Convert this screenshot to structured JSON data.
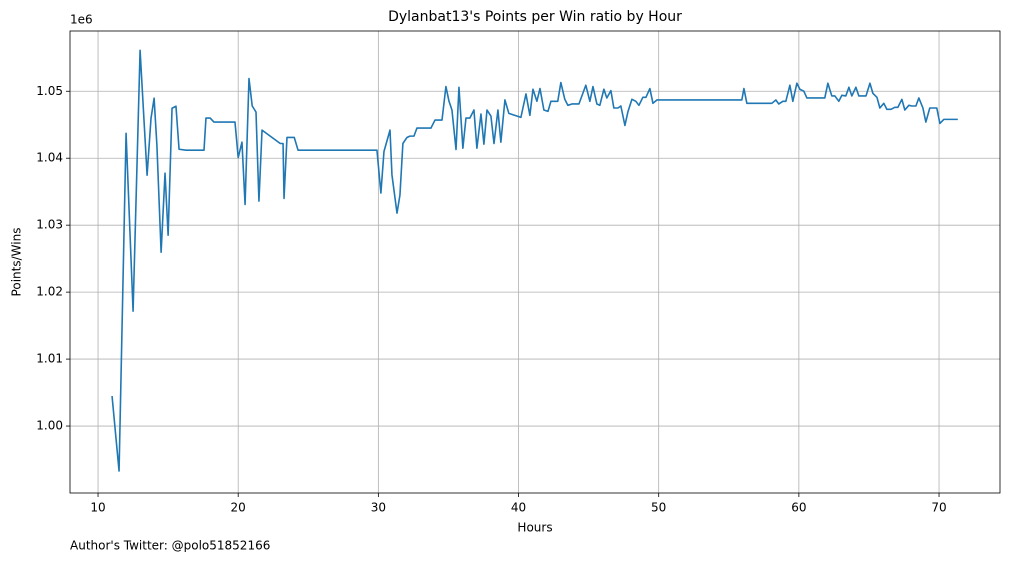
{
  "chart_data": {
    "type": "line",
    "title": "Dylanbat13's Points per Win ratio by Hour",
    "x_label": "Hours",
    "y_label": "Points/Wins",
    "y_offset_label": "1e6",
    "annotation": "Author's Twitter: @polo51852166",
    "grid": true,
    "color": "#1f77b4",
    "xlim": [
      8.0,
      74.35
    ],
    "ylim": [
      990000,
      1059000
    ],
    "xticks": [
      10,
      20,
      30,
      40,
      50,
      60,
      70
    ],
    "yticks": [
      {
        "value": 1000000,
        "label": "1.00"
      },
      {
        "value": 1010000,
        "label": "1.01"
      },
      {
        "value": 1020000,
        "label": "1.02"
      },
      {
        "value": 1030000,
        "label": "1.03"
      },
      {
        "value": 1040000,
        "label": "1.04"
      },
      {
        "value": 1050000,
        "label": "1.05"
      }
    ],
    "x": [
      11.0,
      11.5,
      12.0,
      12.5,
      13.0,
      13.5,
      13.78,
      14.0,
      14.2,
      14.5,
      14.78,
      15.0,
      15.28,
      15.56,
      15.78,
      16.28,
      17.56,
      17.7,
      18.0,
      18.27,
      19.77,
      20.0,
      20.27,
      20.49,
      20.77,
      21.0,
      21.27,
      21.48,
      21.7,
      23.0,
      23.2,
      23.27,
      23.48,
      24.0,
      24.27,
      29.9,
      30.18,
      30.4,
      30.83,
      30.97,
      31.33,
      31.54,
      31.75,
      32.04,
      32.25,
      32.54,
      32.75,
      33.75,
      34.04,
      34.54,
      34.82,
      35.04,
      35.25,
      35.54,
      35.75,
      36.03,
      36.25,
      36.53,
      36.82,
      37.03,
      37.32,
      37.53,
      37.75,
      38.03,
      38.25,
      38.53,
      38.74,
      39.03,
      39.31,
      40.17,
      40.53,
      40.81,
      41.03,
      41.31,
      41.53,
      41.81,
      42.1,
      42.31,
      42.8,
      43.02,
      43.3,
      43.52,
      43.81,
      44.31,
      44.8,
      45.09,
      45.31,
      45.59,
      45.8,
      46.09,
      46.3,
      46.59,
      46.8,
      47.09,
      47.3,
      47.59,
      47.8,
      48.09,
      48.37,
      48.59,
      48.87,
      49.09,
      49.37,
      49.59,
      49.87,
      55.93,
      56.08,
      56.29,
      58.07,
      58.36,
      58.57,
      58.86,
      59.07,
      59.36,
      59.57,
      59.86,
      60.07,
      60.36,
      60.57,
      61.85,
      62.07,
      62.35,
      62.57,
      62.85,
      63.07,
      63.35,
      63.57,
      63.78,
      64.07,
      64.28,
      64.79,
      65.07,
      65.28,
      65.57,
      65.78,
      66.06,
      66.28,
      66.57,
      66.85,
      67.06,
      67.35,
      67.56,
      67.85,
      68.06,
      68.35,
      68.56,
      68.85,
      69.06,
      69.34,
      69.84,
      70.06,
      70.34,
      71.34
    ],
    "values": [
      1004480,
      993280,
      1043730,
      1017160,
      1056120,
      1037460,
      1045970,
      1048960,
      1041940,
      1025970,
      1037760,
      1028510,
      1047460,
      1047760,
      1041340,
      1041200,
      1041200,
      1046000,
      1046000,
      1045400,
      1045400,
      1040100,
      1042400,
      1033100,
      1051900,
      1047800,
      1046900,
      1033600,
      1044200,
      1042200,
      1042200,
      1034000,
      1043100,
      1043100,
      1041200,
      1041200,
      1034800,
      1041000,
      1044200,
      1037500,
      1031800,
      1034500,
      1042200,
      1043100,
      1043300,
      1043300,
      1044500,
      1044500,
      1045700,
      1045700,
      1050700,
      1048500,
      1047200,
      1041300,
      1050600,
      1041500,
      1046000,
      1046000,
      1047200,
      1041500,
      1046600,
      1042100,
      1047200,
      1046300,
      1042200,
      1047200,
      1042400,
      1048700,
      1046700,
      1046100,
      1049600,
      1046400,
      1050300,
      1048500,
      1050400,
      1047200,
      1047000,
      1048500,
      1048500,
      1051300,
      1048800,
      1047900,
      1048100,
      1048100,
      1050900,
      1048500,
      1050700,
      1048100,
      1047900,
      1050300,
      1049000,
      1050100,
      1047500,
      1047500,
      1047800,
      1044900,
      1046900,
      1048800,
      1048500,
      1047900,
      1049100,
      1049100,
      1050400,
      1048200,
      1048700,
      1048700,
      1050400,
      1048200,
      1048200,
      1048700,
      1048100,
      1048500,
      1048500,
      1050900,
      1048500,
      1051200,
      1050300,
      1050000,
      1049000,
      1049000,
      1051200,
      1049300,
      1049300,
      1048500,
      1049400,
      1049300,
      1050600,
      1049300,
      1050600,
      1049300,
      1049300,
      1051200,
      1049700,
      1049100,
      1047500,
      1048200,
      1047300,
      1047300,
      1047600,
      1047600,
      1048800,
      1047200,
      1047900,
      1047800,
      1047800,
      1049000,
      1047500,
      1045400,
      1047500,
      1047500,
      1045200,
      1045800,
      1045800
    ]
  }
}
